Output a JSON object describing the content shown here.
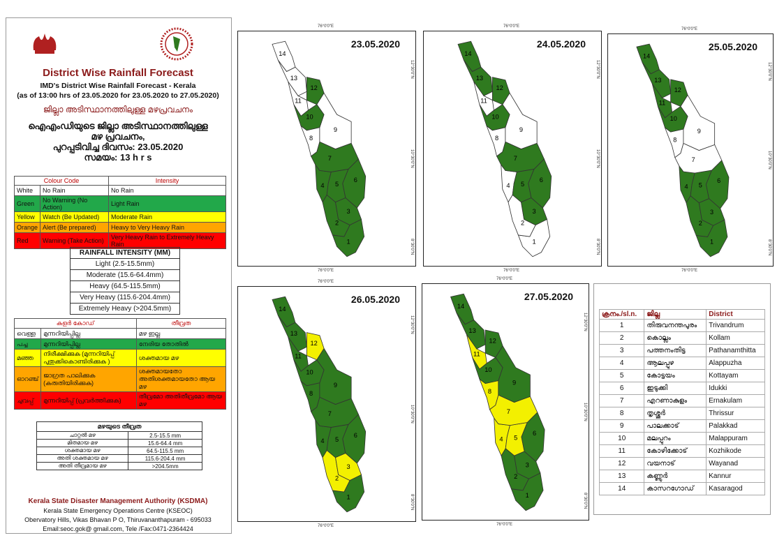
{
  "header": {
    "title": "District Wise Rainfall Forecast",
    "subtitle1": "IMD's District Wise Rainfall Forecast - Kerala",
    "subtitle2": "(as of 13:00 hrs of 23.05.2020  for 23.05.2020  to 27.05.2020)",
    "mal_title": "ജില്ലാ അടിസ്ഥാനത്തിലുള്ള മഴപ്രവചനം",
    "mal_line1": "ഐഎംഡിയുടെ ജില്ലാ  അടിസ്ഥാനത്തിലുള്ള",
    "mal_line2": "മഴ പ്രവചനം,",
    "mal_line3": "പുറപ്പടിവിച്ച  ദിവസം: 23.05.2020",
    "mal_line4": "സമയം: 13 h r s"
  },
  "colour_code": {
    "head_code": "Colour Code",
    "head_intensity": "Intensity",
    "rows": [
      {
        "colour": "White",
        "code": "No Rain",
        "intensity": "No Rain",
        "bg": "#ffffff"
      },
      {
        "colour": "Green",
        "code": "No Warning (No Action)",
        "intensity": "Light Rain",
        "bg": "#22a84a"
      },
      {
        "colour": "Yellow",
        "code": "Watch (Be Updated)",
        "intensity": "Moderate Rain",
        "bg": "#ffff00"
      },
      {
        "colour": "Orange",
        "code": "Alert (Be prepared)",
        "intensity": "Heavy to Very Heavy Rain",
        "bg": "#ffa500"
      },
      {
        "colour": "Red",
        "code": "Warning (Take Action)",
        "intensity": "Very Heavy Rain to Extremely Heavy Rain",
        "bg": "#ff0000"
      }
    ]
  },
  "rain_intensity": {
    "title": "RAINFALL INTENSITY (MM)",
    "rows": [
      "Light (2.5-15.5mm)",
      "Moderate (15.6-64.4mm)",
      "Heavy (64.5-115.5mm)",
      "Very Heavy (115.6-204.4mm)",
      "Extremely Heavy (>204.5mm)"
    ]
  },
  "mal_code": {
    "head_code": "കളർ കോഡ്",
    "head_intensity": "തീവ്രത",
    "rows": [
      {
        "colour": "വെള്ള",
        "code": "മുന്നറിയിപ്പില്ല",
        "intensity": "മഴ ഇല്ല",
        "bg": "#ffffff"
      },
      {
        "colour": "പച്ച",
        "code": "മുന്നറിയിപ്പില്ല",
        "intensity": "നേരിയ തോതിൽ",
        "bg": "#22a84a"
      },
      {
        "colour": "മഞ്ഞ",
        "code": "നിരീക്ഷിക്കുക (മുന്നറിയിപ്പ് പുതുക്കികൊണ്ടിരിക്കുക )",
        "intensity": "ശക്തമായ മഴ",
        "bg": "#ffff00"
      },
      {
        "colour": "ഓറഞ്ച്",
        "code": "ജാഗ്രത പാലിക്കുക (കരുതിയിരിക്കുക)",
        "intensity": "ശക്തമായതോ അതിശക്തമായതോ ആയ മഴ",
        "bg": "#ffa500"
      },
      {
        "colour": "ചുവപ്പ്",
        "code": "മുന്നറിയിപ്പ് (പ്രവർത്തിക്കുക)",
        "intensity": "തീവ്രമോ അതിതീവ്രമോ ആയ മഴ",
        "bg": "#ff0000"
      }
    ]
  },
  "mal_intensity": {
    "title": "മഴയുടെ  തീവ്രത",
    "rows": [
      {
        "label": "ചാറ്റൽ  മഴ",
        "value": "2.5-15.5 mm"
      },
      {
        "label": "മിതമായ  മഴ",
        "value": "15.6-64.4 mm"
      },
      {
        "label": "ശക്തമായ  മഴ",
        "value": "64.5-115.5 mm"
      },
      {
        "label": "അതി ശക്തമായ  മഴ",
        "value": "115.6-204.4 mm"
      },
      {
        "label": "അതി തീവ്രമായ  മഴ",
        "value": ">204.5mm"
      }
    ]
  },
  "footer": {
    "org": "Kerala State Disaster Management Authority (KSDMA)",
    "line1": "Kerala State Emergency Operations Centre (KSEOC)",
    "line2": "Obervatory Hills, Vikas Bhavan P O, Thiruvananthapuram - 695033",
    "line3": "Email:seoc.gok@ gmail.com, Tele /Fax:0471-2364424"
  },
  "ticks": {
    "x": "76°0'0\"E",
    "y1": "12°30'0\"N",
    "y2": "10°30'0\"N",
    "y3": "8°30'0\"N"
  },
  "colors": {
    "green": "#2f7a1f",
    "yellow": "#f3f000",
    "white": "#ffffff"
  },
  "maps": [
    {
      "date": "23.05.2020",
      "fills": {
        "1": "g",
        "2": "g",
        "3": "g",
        "4": "g",
        "5": "g",
        "6": "g",
        "7": "g",
        "8": "w",
        "9": "w",
        "10": "g",
        "11": "w",
        "12": "g",
        "13": "w",
        "14": "w"
      }
    },
    {
      "date": "24.05.2020",
      "fills": {
        "1": "w",
        "2": "w",
        "3": "g",
        "4": "w",
        "5": "g",
        "6": "g",
        "7": "g",
        "8": "w",
        "9": "w",
        "10": "g",
        "11": "w",
        "12": "g",
        "13": "g",
        "14": "g"
      }
    },
    {
      "date": "25.05.2020",
      "fills": {
        "1": "g",
        "2": "g",
        "3": "g",
        "4": "g",
        "5": "g",
        "6": "g",
        "7": "w",
        "8": "w",
        "9": "w",
        "10": "g",
        "11": "g",
        "12": "g",
        "13": "g",
        "14": "g"
      }
    },
    {
      "date": "26.05.2020",
      "fills": {
        "1": "g",
        "2": "y",
        "3": "y",
        "4": "g",
        "5": "g",
        "6": "g",
        "7": "g",
        "8": "g",
        "9": "g",
        "10": "g",
        "11": "g",
        "12": "y",
        "13": "g",
        "14": "g"
      }
    },
    {
      "date": "27.05.2020",
      "fills": {
        "1": "g",
        "2": "g",
        "3": "g",
        "4": "y",
        "5": "y",
        "6": "g",
        "7": "y",
        "8": "y",
        "9": "g",
        "10": "g",
        "11": "y",
        "12": "g",
        "13": "g",
        "14": "g"
      }
    }
  ],
  "districts": {
    "headers": [
      "ക്രനം./sl.n.",
      "ജില്ല",
      "District"
    ],
    "rows": [
      [
        "1",
        "തിരുവനന്തപുരം",
        "Trivandrum"
      ],
      [
        "2",
        "കൊല്ലം",
        "Kollam"
      ],
      [
        "3",
        "പത്തനംതിട്ട",
        "Pathanamthitta"
      ],
      [
        "4",
        "ആലപ്പുഴ",
        "Alappuzha"
      ],
      [
        "5",
        "കോട്ടയം",
        "Kottayam"
      ],
      [
        "6",
        "ഇടുക്കി",
        "Idukki"
      ],
      [
        "7",
        "എറണാകുളം",
        "Ernakulam"
      ],
      [
        "8",
        "തൃശ്ശൂർ",
        "Thrissur"
      ],
      [
        "9",
        "പാലക്കാട്",
        "Palakkad"
      ],
      [
        "10",
        "മലപ്പുറം",
        "Malappuram"
      ],
      [
        "11",
        "കോഴിക്കോട്",
        "Kozhikode"
      ],
      [
        "12",
        "വയനാട്",
        "Wayanad"
      ],
      [
        "13",
        "കണ്ണൂർ",
        "Kannur"
      ],
      [
        "14",
        "കാസറഗോഡ്",
        "Kasaragod"
      ]
    ]
  }
}
